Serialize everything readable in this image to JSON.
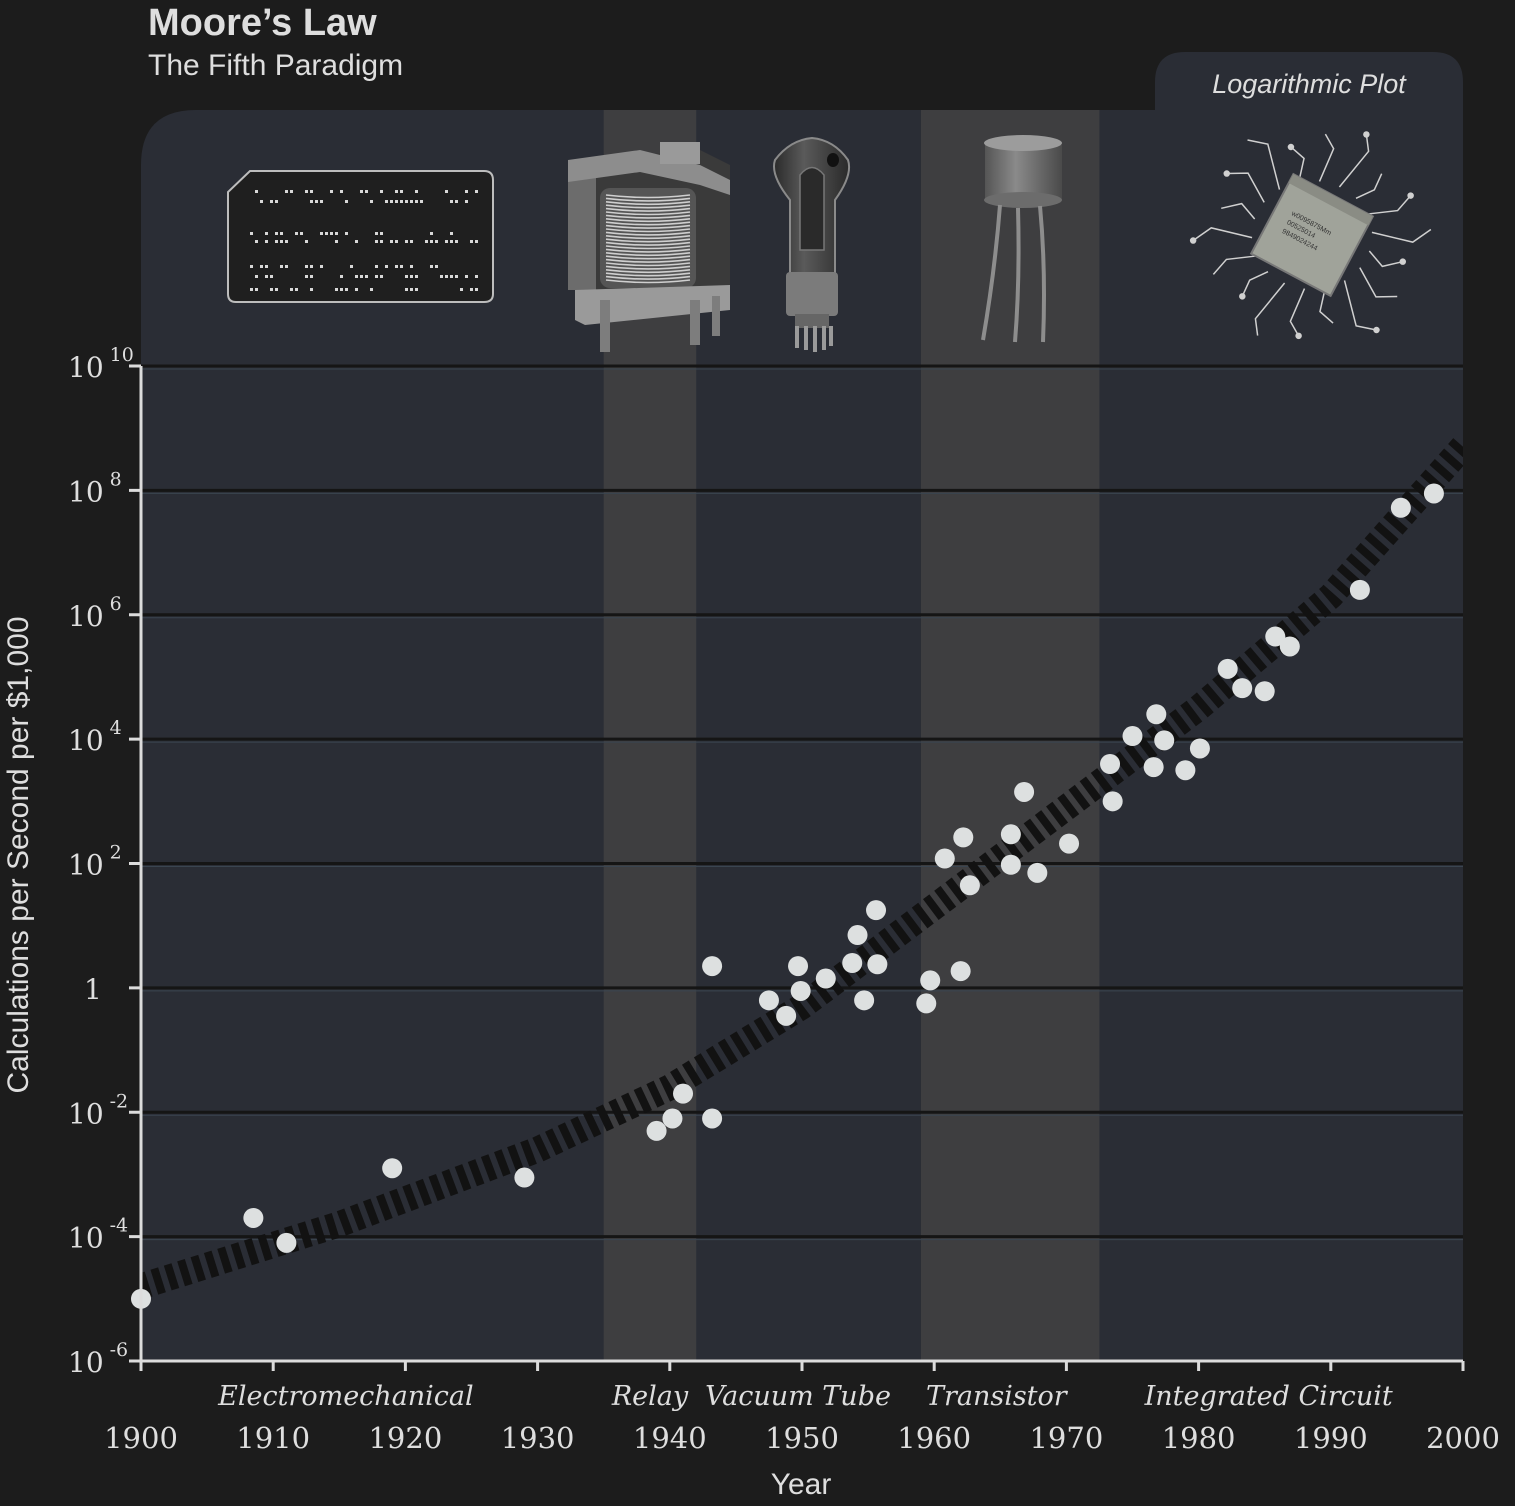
{
  "title": "Moore’s Law",
  "subtitle": "The Fifth Paradigm",
  "badge": "Logarithmic Plot",
  "chip_text": [
    "w0095875Mm",
    "00525014",
    "9849024244"
  ],
  "chart_data": {
    "type": "scatter",
    "title": "Moore’s Law",
    "subtitle": "The Fifth Paradigm",
    "xlabel": "Year",
    "ylabel": "Calculations per Second per $1,000",
    "x_scale": "linear",
    "y_scale": "log",
    "xlim": [
      1900,
      2000
    ],
    "ylim": [
      1e-06,
      10000000000.0
    ],
    "x_ticks": [
      1900,
      1910,
      1920,
      1930,
      1940,
      1950,
      1960,
      1970,
      1980,
      1990,
      2000
    ],
    "y_ticks": [
      {
        "exp": -6,
        "base": "10",
        "sup": "-6"
      },
      {
        "exp": -4,
        "base": "10",
        "sup": "-4"
      },
      {
        "exp": -2,
        "base": "10",
        "sup": "-2"
      },
      {
        "exp": 0,
        "base": "1",
        "sup": ""
      },
      {
        "exp": 2,
        "base": "10",
        "sup": "2"
      },
      {
        "exp": 4,
        "base": "10",
        "sup": "4"
      },
      {
        "exp": 6,
        "base": "10",
        "sup": "6"
      },
      {
        "exp": 8,
        "base": "10",
        "sup": "8"
      },
      {
        "exp": 10,
        "base": "10",
        "sup": "10"
      }
    ],
    "eras": [
      {
        "label": "Electromechanical",
        "start": 1900,
        "end": 1935,
        "shaded": false
      },
      {
        "label": "Relay",
        "start": 1935,
        "end": 1942,
        "shaded": true
      },
      {
        "label": "Vacuum Tube",
        "start": 1942,
        "end": 1959,
        "shaded": false
      },
      {
        "label": "Transistor",
        "start": 1959,
        "end": 1972.5,
        "shaded": true
      },
      {
        "label": "Integrated Circuit",
        "start": 1972.5,
        "end": 2000,
        "shaded": false
      }
    ],
    "trend_band": {
      "x": [
        1900,
        1915,
        1930,
        1940,
        1950,
        1960,
        1970,
        1980,
        1990,
        2000
      ],
      "log10_y": [
        -4.8,
        -3.8,
        -2.6,
        -1.6,
        -0.3,
        1.3,
        2.9,
        4.5,
        6.3,
        8.7
      ]
    },
    "points": [
      {
        "x": 1900,
        "log10_y": -5.0
      },
      {
        "x": 1908.5,
        "log10_y": -3.7
      },
      {
        "x": 1911,
        "log10_y": -4.1
      },
      {
        "x": 1919,
        "log10_y": -2.9
      },
      {
        "x": 1929,
        "log10_y": -3.05
      },
      {
        "x": 1939,
        "log10_y": -2.3
      },
      {
        "x": 1940.2,
        "log10_y": -2.1
      },
      {
        "x": 1941,
        "log10_y": -1.7
      },
      {
        "x": 1943.2,
        "log10_y": -2.1
      },
      {
        "x": 1943.2,
        "log10_y": 0.35
      },
      {
        "x": 1947.5,
        "log10_y": -0.2
      },
      {
        "x": 1948.8,
        "log10_y": -0.45
      },
      {
        "x": 1949.7,
        "log10_y": 0.35
      },
      {
        "x": 1949.9,
        "log10_y": -0.05
      },
      {
        "x": 1951.8,
        "log10_y": 0.15
      },
      {
        "x": 1953.8,
        "log10_y": 0.4
      },
      {
        "x": 1954.2,
        "log10_y": 0.85
      },
      {
        "x": 1954.7,
        "log10_y": -0.2
      },
      {
        "x": 1955.6,
        "log10_y": 1.25
      },
      {
        "x": 1955.7,
        "log10_y": 0.38
      },
      {
        "x": 1959.4,
        "log10_y": -0.25
      },
      {
        "x": 1959.7,
        "log10_y": 0.12
      },
      {
        "x": 1960.8,
        "log10_y": 2.08
      },
      {
        "x": 1962,
        "log10_y": 0.27
      },
      {
        "x": 1962.2,
        "log10_y": 2.42
      },
      {
        "x": 1962.7,
        "log10_y": 1.65
      },
      {
        "x": 1965.8,
        "log10_y": 2.47
      },
      {
        "x": 1965.8,
        "log10_y": 1.98
      },
      {
        "x": 1966.8,
        "log10_y": 3.15
      },
      {
        "x": 1967.8,
        "log10_y": 1.85
      },
      {
        "x": 1970.2,
        "log10_y": 2.32
      },
      {
        "x": 1973.3,
        "log10_y": 3.6
      },
      {
        "x": 1973.5,
        "log10_y": 3.0
      },
      {
        "x": 1975,
        "log10_y": 4.05
      },
      {
        "x": 1976.6,
        "log10_y": 3.55
      },
      {
        "x": 1976.8,
        "log10_y": 4.4
      },
      {
        "x": 1977.4,
        "log10_y": 3.98
      },
      {
        "x": 1979,
        "log10_y": 3.5
      },
      {
        "x": 1980.1,
        "log10_y": 3.85
      },
      {
        "x": 1982.2,
        "log10_y": 5.13
      },
      {
        "x": 1983.3,
        "log10_y": 4.82
      },
      {
        "x": 1985,
        "log10_y": 4.77
      },
      {
        "x": 1985.8,
        "log10_y": 5.65
      },
      {
        "x": 1986.9,
        "log10_y": 5.49
      },
      {
        "x": 1992.2,
        "log10_y": 6.4
      },
      {
        "x": 1995.3,
        "log10_y": 7.72
      },
      {
        "x": 1997.8,
        "log10_y": 7.95
      }
    ]
  },
  "colors": {
    "page_bg": "#1c1c1c",
    "panel_bg": "#2a2d35",
    "shade_band": "#3e3e40",
    "gridline": "#151515",
    "axis": "#dcdcdc",
    "text": "#dedede",
    "point": "#dde0e0",
    "trend": "#121212"
  }
}
